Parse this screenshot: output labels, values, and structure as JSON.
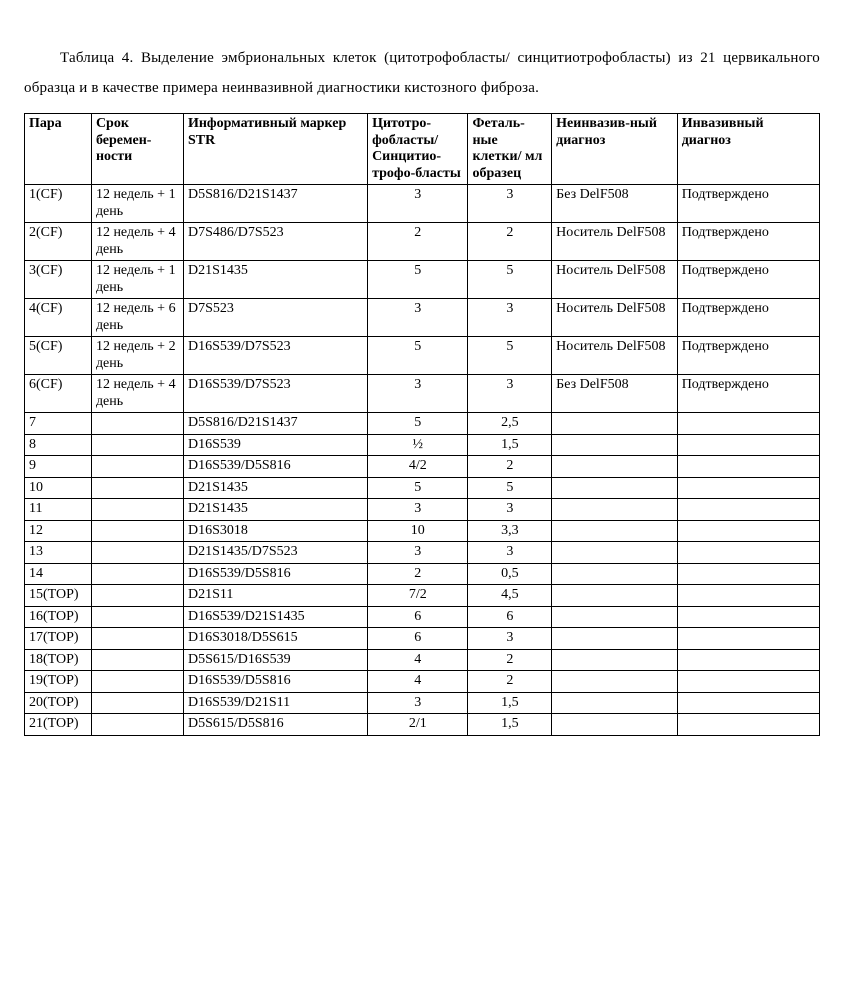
{
  "caption": "Таблица 4. Выделение эмбриональных клеток (цитотрофобласты/ синцитиотрофобласты) из 21 цервикального образца и в качестве примера неинвазивной диагностики кистозного фиброза.",
  "headers": [
    "Пара",
    "Срок беремен-ности",
    "Информативный маркер STR",
    "Цитотро-фобласты/ Синцитио-трофо-бласты",
    "Феталь-ные клетки/ мл образец",
    "Неинвазив-ный диагноз",
    "Инвазивный диагноз"
  ],
  "rows": [
    [
      "1(CF)",
      "12 недель + 1 день",
      "D5S816/D21S1437",
      "3",
      "3",
      "Без DelF508",
      "Подтверждено"
    ],
    [
      "2(CF)",
      "12 недель + 4 день",
      "D7S486/D7S523",
      "2",
      "2",
      "Носитель DelF508",
      "Подтверждено"
    ],
    [
      "3(CF)",
      "12 недель + 1 день",
      "D21S1435",
      "5",
      "5",
      "Носитель DelF508",
      "Подтверждено"
    ],
    [
      "4(CF)",
      "12 недель + 6 день",
      "D7S523",
      "3",
      "3",
      "Носитель DelF508",
      "Подтверждено"
    ],
    [
      "5(CF)",
      "12 недель + 2 день",
      "D16S539/D7S523",
      "5",
      "5",
      "Носитель DelF508",
      "Подтверждено"
    ],
    [
      "6(CF)",
      "12 недель + 4 день",
      "D16S539/D7S523",
      "3",
      "3",
      "Без DelF508",
      "Подтверждено"
    ],
    [
      "7",
      "",
      "D5S816/D21S1437",
      "5",
      "2,5",
      "",
      ""
    ],
    [
      "8",
      "",
      "D16S539",
      "½",
      "1,5",
      "",
      ""
    ],
    [
      "9",
      "",
      "D16S539/D5S816",
      "4/2",
      "2",
      "",
      ""
    ],
    [
      "10",
      "",
      "D21S1435",
      "5",
      "5",
      "",
      ""
    ],
    [
      "11",
      "",
      "D21S1435",
      "3",
      "3",
      "",
      ""
    ],
    [
      "12",
      "",
      "D16S3018",
      "10",
      "3,3",
      "",
      ""
    ],
    [
      "13",
      "",
      "D21S1435/D7S523",
      "3",
      "3",
      "",
      ""
    ],
    [
      "14",
      "",
      "D16S539/D5S816",
      "2",
      "0,5",
      "",
      ""
    ],
    [
      "15(TOP)",
      "",
      "D21S11",
      "7/2",
      "4,5",
      "",
      ""
    ],
    [
      "16(TOP)",
      "",
      "D16S539/D21S1435",
      "6",
      "6",
      "",
      ""
    ],
    [
      "17(TOP)",
      "",
      "D16S3018/D5S615",
      "6",
      "3",
      "",
      ""
    ],
    [
      "18(TOP)",
      "",
      "D5S615/D16S539",
      "4",
      "2",
      "",
      ""
    ],
    [
      "19(TOP)",
      "",
      "D16S539/D5S816",
      "4",
      "2",
      "",
      ""
    ],
    [
      "20(TOP)",
      "",
      "D16S539/D21S11",
      "3",
      "1,5",
      "",
      ""
    ],
    [
      "21(TOP)",
      "",
      "D5S615/D5S816",
      "2/1",
      "1,5",
      "",
      ""
    ]
  ],
  "centered_cols": [
    3,
    4
  ]
}
